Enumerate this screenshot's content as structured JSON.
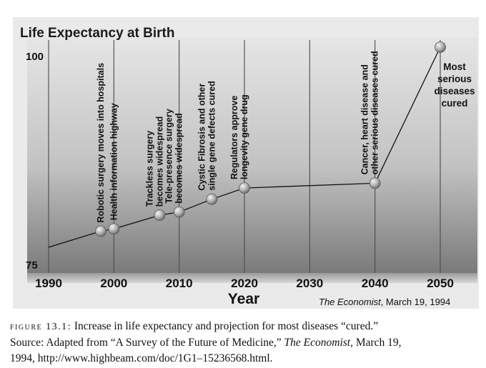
{
  "chart_data": {
    "type": "line",
    "title": "Life Expectancy at Birth",
    "xlabel": "Year",
    "ylabel": "",
    "xlim": [
      1990,
      2050
    ],
    "ylim": [
      75,
      100
    ],
    "x_ticks": [
      "1990",
      "2000",
      "2010",
      "2020",
      "2030",
      "2040",
      "2050"
    ],
    "y_ticks": [
      "75",
      "100"
    ],
    "grid": "vertical lines",
    "line": {
      "x": [
        1990,
        1998,
        2000,
        2007,
        2010,
        2015,
        2020,
        2040,
        2050
      ],
      "y": [
        75.0,
        77.0,
        77.3,
        79.0,
        79.4,
        81.0,
        82.4,
        83.0,
        100.0
      ]
    },
    "milestones": [
      {
        "x": 1998,
        "y": 77.0,
        "label_lines": [
          "Robotic surgery moves into hospitals"
        ]
      },
      {
        "x": 2000,
        "y": 77.3,
        "label_lines": [
          "Health information highway"
        ]
      },
      {
        "x": 2007,
        "y": 79.0,
        "label_lines": [
          "Trackless surgery",
          "becomes widespread"
        ]
      },
      {
        "x": 2010,
        "y": 79.4,
        "label_lines": [
          "Tele-presence surgery",
          "becomes widespread"
        ]
      },
      {
        "x": 2015,
        "y": 81.0,
        "label_lines": [
          "Cystic Fibrosis and other",
          "single gene defects cured"
        ]
      },
      {
        "x": 2020,
        "y": 82.4,
        "label_lines": [
          "Regulators approve",
          "longevity gene drug"
        ]
      },
      {
        "x": 2040,
        "y": 83.0,
        "label_lines": [
          "Cancer, heart disease and",
          "other serious diseases cured"
        ]
      },
      {
        "x": 2050,
        "y": 100.0,
        "label_lines": [
          "Most",
          "serious",
          "diseases",
          "cured"
        ]
      }
    ],
    "source_note": {
      "italic": "The Economist",
      "rest": ", March 19, 1994"
    },
    "colors": {
      "background_top": "#e4e4e4",
      "background_bottom": "#7d7d7d",
      "line": "#111111",
      "marker": "#b0b0b0"
    }
  },
  "caption": {
    "figure_label": "figure 13.1:",
    "line1": "Increase in life expectancy and projection for most diseases “cured.”",
    "line2_before": "Source: Adapted from “A Survey of the Future of Medicine,” ",
    "line2_italic": "The Economist",
    "line2_after": ", March 19,",
    "line3": "1994, http://www.highbeam.com/doc/1G1–15236568.html."
  }
}
